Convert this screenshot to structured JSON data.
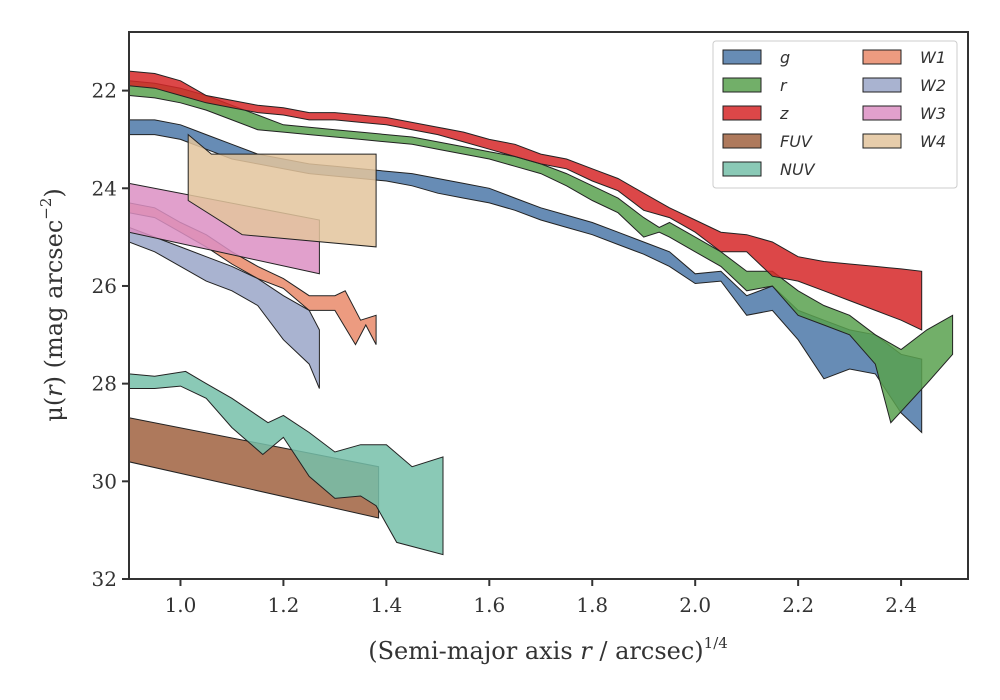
{
  "chart_data": {
    "type": "area",
    "title": "",
    "xlabel_main": "(Semi-major axis ",
    "xlabel_var": "r",
    "xlabel_tail": " / arcsec)",
    "xlabel_exp": "1/4",
    "ylabel_main": "μ(",
    "ylabel_var": "r",
    "ylabel_tail": ") (mag arcsec",
    "ylabel_exp": "−2",
    "ylabel_close": ")",
    "xlim": [
      0.9,
      2.53
    ],
    "ylim": [
      32,
      20.8
    ],
    "y_inverted": true,
    "x_ticks": [
      "1.0",
      "1.2",
      "1.4",
      "1.6",
      "1.8",
      "2.0",
      "2.2",
      "2.4"
    ],
    "y_ticks": [
      "22",
      "24",
      "26",
      "28",
      "30",
      "32"
    ],
    "grid": false,
    "legend_position": "top-right",
    "series": [
      {
        "name": "g",
        "color": "#4c78a8",
        "upper": [
          [
            0.9,
            22.6
          ],
          [
            0.95,
            22.6
          ],
          [
            1.0,
            22.7
          ],
          [
            1.05,
            22.9
          ],
          [
            1.1,
            23.1
          ],
          [
            1.15,
            23.3
          ],
          [
            1.2,
            23.4
          ],
          [
            1.25,
            23.5
          ],
          [
            1.3,
            23.55
          ],
          [
            1.35,
            23.6
          ],
          [
            1.4,
            23.65
          ],
          [
            1.45,
            23.7
          ],
          [
            1.5,
            23.8
          ],
          [
            1.55,
            23.9
          ],
          [
            1.6,
            24.0
          ],
          [
            1.65,
            24.2
          ],
          [
            1.7,
            24.4
          ],
          [
            1.75,
            24.55
          ],
          [
            1.8,
            24.7
          ],
          [
            1.85,
            24.9
          ],
          [
            1.9,
            25.1
          ],
          [
            1.95,
            25.3
          ],
          [
            2.0,
            25.75
          ],
          [
            2.05,
            25.7
          ],
          [
            2.1,
            26.2
          ],
          [
            2.15,
            26.0
          ],
          [
            2.2,
            26.5
          ],
          [
            2.25,
            26.7
          ],
          [
            2.3,
            26.9
          ],
          [
            2.35,
            27.0
          ],
          [
            2.4,
            27.4
          ],
          [
            2.44,
            27.5
          ]
        ],
        "lower": [
          [
            0.9,
            22.9
          ],
          [
            0.95,
            22.9
          ],
          [
            1.0,
            23.0
          ],
          [
            1.05,
            23.2
          ],
          [
            1.1,
            23.4
          ],
          [
            1.15,
            23.5
          ],
          [
            1.2,
            23.6
          ],
          [
            1.25,
            23.7
          ],
          [
            1.3,
            23.75
          ],
          [
            1.35,
            23.8
          ],
          [
            1.4,
            23.85
          ],
          [
            1.45,
            23.95
          ],
          [
            1.5,
            24.1
          ],
          [
            1.55,
            24.2
          ],
          [
            1.6,
            24.3
          ],
          [
            1.65,
            24.45
          ],
          [
            1.7,
            24.65
          ],
          [
            1.75,
            24.8
          ],
          [
            1.8,
            24.95
          ],
          [
            1.85,
            25.15
          ],
          [
            1.9,
            25.35
          ],
          [
            1.95,
            25.6
          ],
          [
            2.0,
            25.95
          ],
          [
            2.05,
            25.9
          ],
          [
            2.1,
            26.6
          ],
          [
            2.15,
            26.5
          ],
          [
            2.2,
            27.1
          ],
          [
            2.25,
            27.9
          ],
          [
            2.3,
            27.7
          ],
          [
            2.35,
            27.8
          ],
          [
            2.4,
            28.6
          ],
          [
            2.44,
            29.0
          ]
        ]
      },
      {
        "name": "r",
        "color": "#59a14f",
        "upper": [
          [
            0.9,
            21.8
          ],
          [
            0.95,
            21.85
          ],
          [
            1.0,
            21.95
          ],
          [
            1.05,
            22.1
          ],
          [
            1.1,
            22.3
          ],
          [
            1.15,
            22.5
          ],
          [
            1.2,
            22.7
          ],
          [
            1.25,
            22.75
          ],
          [
            1.3,
            22.8
          ],
          [
            1.35,
            22.85
          ],
          [
            1.4,
            22.9
          ],
          [
            1.45,
            22.95
          ],
          [
            1.5,
            23.05
          ],
          [
            1.55,
            23.15
          ],
          [
            1.6,
            23.25
          ],
          [
            1.65,
            23.35
          ],
          [
            1.7,
            23.5
          ],
          [
            1.75,
            23.7
          ],
          [
            1.8,
            23.95
          ],
          [
            1.85,
            24.2
          ],
          [
            1.9,
            24.6
          ],
          [
            1.93,
            24.8
          ],
          [
            1.95,
            24.7
          ],
          [
            2.0,
            25.0
          ],
          [
            2.05,
            25.3
          ],
          [
            2.1,
            25.7
          ],
          [
            2.15,
            25.7
          ],
          [
            2.2,
            26.1
          ],
          [
            2.25,
            26.4
          ],
          [
            2.3,
            26.6
          ],
          [
            2.35,
            27.0
          ],
          [
            2.4,
            27.3
          ],
          [
            2.45,
            26.9
          ],
          [
            2.5,
            26.6
          ]
        ],
        "lower": [
          [
            0.9,
            22.1
          ],
          [
            0.95,
            22.15
          ],
          [
            1.0,
            22.25
          ],
          [
            1.05,
            22.4
          ],
          [
            1.1,
            22.6
          ],
          [
            1.15,
            22.8
          ],
          [
            1.2,
            22.85
          ],
          [
            1.25,
            22.9
          ],
          [
            1.3,
            22.95
          ],
          [
            1.35,
            23.0
          ],
          [
            1.4,
            23.05
          ],
          [
            1.45,
            23.1
          ],
          [
            1.5,
            23.2
          ],
          [
            1.55,
            23.3
          ],
          [
            1.6,
            23.4
          ],
          [
            1.65,
            23.55
          ],
          [
            1.7,
            23.7
          ],
          [
            1.75,
            23.95
          ],
          [
            1.8,
            24.25
          ],
          [
            1.85,
            24.5
          ],
          [
            1.9,
            25.0
          ],
          [
            1.93,
            24.9
          ],
          [
            1.95,
            25.0
          ],
          [
            2.0,
            25.3
          ],
          [
            2.05,
            25.6
          ],
          [
            2.1,
            26.1
          ],
          [
            2.15,
            26.0
          ],
          [
            2.2,
            26.6
          ],
          [
            2.25,
            26.8
          ],
          [
            2.3,
            27.0
          ],
          [
            2.35,
            27.6
          ],
          [
            2.38,
            28.8
          ],
          [
            2.45,
            28.0
          ],
          [
            2.5,
            27.4
          ]
        ]
      },
      {
        "name": "z",
        "color": "#d62728",
        "upper": [
          [
            0.9,
            21.6
          ],
          [
            0.95,
            21.65
          ],
          [
            1.0,
            21.8
          ],
          [
            1.05,
            22.1
          ],
          [
            1.1,
            22.2
          ],
          [
            1.15,
            22.3
          ],
          [
            1.2,
            22.35
          ],
          [
            1.25,
            22.45
          ],
          [
            1.3,
            22.45
          ],
          [
            1.35,
            22.5
          ],
          [
            1.4,
            22.55
          ],
          [
            1.45,
            22.65
          ],
          [
            1.5,
            22.75
          ],
          [
            1.55,
            22.85
          ],
          [
            1.6,
            23.0
          ],
          [
            1.65,
            23.1
          ],
          [
            1.7,
            23.3
          ],
          [
            1.75,
            23.4
          ],
          [
            1.8,
            23.6
          ],
          [
            1.85,
            23.8
          ],
          [
            1.9,
            24.1
          ],
          [
            1.95,
            24.4
          ],
          [
            2.0,
            24.65
          ],
          [
            2.05,
            24.9
          ],
          [
            2.1,
            24.95
          ],
          [
            2.15,
            25.1
          ],
          [
            2.2,
            25.4
          ],
          [
            2.25,
            25.5
          ],
          [
            2.3,
            25.55
          ],
          [
            2.35,
            25.6
          ],
          [
            2.4,
            25.65
          ],
          [
            2.44,
            25.7
          ]
        ],
        "lower": [
          [
            0.9,
            21.9
          ],
          [
            0.95,
            21.95
          ],
          [
            1.0,
            22.1
          ],
          [
            1.05,
            22.25
          ],
          [
            1.1,
            22.35
          ],
          [
            1.15,
            22.45
          ],
          [
            1.2,
            22.5
          ],
          [
            1.25,
            22.6
          ],
          [
            1.3,
            22.6
          ],
          [
            1.35,
            22.65
          ],
          [
            1.4,
            22.7
          ],
          [
            1.45,
            22.8
          ],
          [
            1.5,
            22.9
          ],
          [
            1.55,
            23.05
          ],
          [
            1.6,
            23.2
          ],
          [
            1.65,
            23.35
          ],
          [
            1.7,
            23.5
          ],
          [
            1.75,
            23.6
          ],
          [
            1.8,
            23.85
          ],
          [
            1.85,
            24.05
          ],
          [
            1.9,
            24.45
          ],
          [
            1.95,
            24.6
          ],
          [
            2.0,
            24.9
          ],
          [
            2.05,
            25.3
          ],
          [
            2.1,
            25.3
          ],
          [
            2.15,
            25.8
          ],
          [
            2.2,
            25.9
          ],
          [
            2.25,
            26.1
          ],
          [
            2.3,
            26.3
          ],
          [
            2.35,
            26.5
          ],
          [
            2.4,
            26.7
          ],
          [
            2.44,
            26.9
          ]
        ]
      },
      {
        "name": "FUV",
        "color": "#a0623f",
        "upper": [
          [
            0.9,
            28.7
          ],
          [
            1.385,
            29.7
          ]
        ],
        "lower": [
          [
            0.9,
            29.6
          ],
          [
            1.385,
            30.75
          ]
        ]
      },
      {
        "name": "NUV",
        "color": "#76c0a9",
        "upper": [
          [
            0.9,
            27.8
          ],
          [
            0.95,
            27.85
          ],
          [
            1.01,
            27.75
          ],
          [
            1.05,
            28.0
          ],
          [
            1.1,
            28.3
          ],
          [
            1.17,
            28.8
          ],
          [
            1.2,
            28.65
          ],
          [
            1.25,
            29.0
          ],
          [
            1.3,
            29.4
          ],
          [
            1.35,
            29.25
          ],
          [
            1.4,
            29.25
          ],
          [
            1.45,
            29.7
          ],
          [
            1.51,
            29.5
          ]
        ],
        "lower": [
          [
            0.9,
            28.1
          ],
          [
            0.95,
            28.1
          ],
          [
            1.0,
            28.05
          ],
          [
            1.05,
            28.3
          ],
          [
            1.1,
            28.9
          ],
          [
            1.16,
            29.45
          ],
          [
            1.2,
            29.1
          ],
          [
            1.25,
            29.9
          ],
          [
            1.3,
            30.35
          ],
          [
            1.35,
            30.3
          ],
          [
            1.38,
            30.5
          ],
          [
            1.42,
            31.25
          ],
          [
            1.51,
            31.5
          ]
        ]
      },
      {
        "name": "W1",
        "color": "#e9896a",
        "upper": [
          [
            0.9,
            24.3
          ],
          [
            0.95,
            24.4
          ],
          [
            1.0,
            24.7
          ],
          [
            1.05,
            24.95
          ],
          [
            1.1,
            25.3
          ],
          [
            1.15,
            25.6
          ],
          [
            1.2,
            25.85
          ],
          [
            1.25,
            26.2
          ],
          [
            1.3,
            26.2
          ],
          [
            1.32,
            26.1
          ],
          [
            1.35,
            26.7
          ],
          [
            1.38,
            26.6
          ]
        ],
        "lower": [
          [
            0.9,
            24.5
          ],
          [
            0.95,
            24.6
          ],
          [
            1.0,
            24.9
          ],
          [
            1.05,
            25.2
          ],
          [
            1.1,
            25.55
          ],
          [
            1.15,
            25.85
          ],
          [
            1.2,
            26.05
          ],
          [
            1.25,
            26.5
          ],
          [
            1.3,
            26.5
          ],
          [
            1.34,
            27.2
          ],
          [
            1.36,
            26.8
          ],
          [
            1.38,
            27.2
          ]
        ]
      },
      {
        "name": "W2",
        "color": "#9aa6c8",
        "upper": [
          [
            0.9,
            24.8
          ],
          [
            0.95,
            25.0
          ],
          [
            1.0,
            25.2
          ],
          [
            1.05,
            25.4
          ],
          [
            1.1,
            25.6
          ],
          [
            1.15,
            25.85
          ],
          [
            1.2,
            26.2
          ],
          [
            1.25,
            26.5
          ],
          [
            1.27,
            26.9
          ]
        ],
        "lower": [
          [
            0.9,
            25.1
          ],
          [
            0.95,
            25.3
          ],
          [
            1.0,
            25.6
          ],
          [
            1.05,
            25.9
          ],
          [
            1.1,
            26.1
          ],
          [
            1.15,
            26.4
          ],
          [
            1.2,
            27.1
          ],
          [
            1.25,
            27.6
          ],
          [
            1.27,
            28.1
          ]
        ]
      },
      {
        "name": "W3",
        "color": "#dc8fc3",
        "upper": [
          [
            0.9,
            23.9
          ],
          [
            1.27,
            24.65
          ]
        ],
        "lower": [
          [
            0.9,
            24.9
          ],
          [
            1.27,
            25.75
          ]
        ]
      },
      {
        "name": "W4",
        "color": "#e3c49c",
        "upper": [
          [
            1.015,
            22.9
          ],
          [
            1.06,
            23.3
          ],
          [
            1.38,
            23.3
          ]
        ],
        "lower": [
          [
            1.015,
            24.25
          ],
          [
            1.12,
            24.95
          ],
          [
            1.38,
            25.2
          ]
        ]
      }
    ]
  }
}
